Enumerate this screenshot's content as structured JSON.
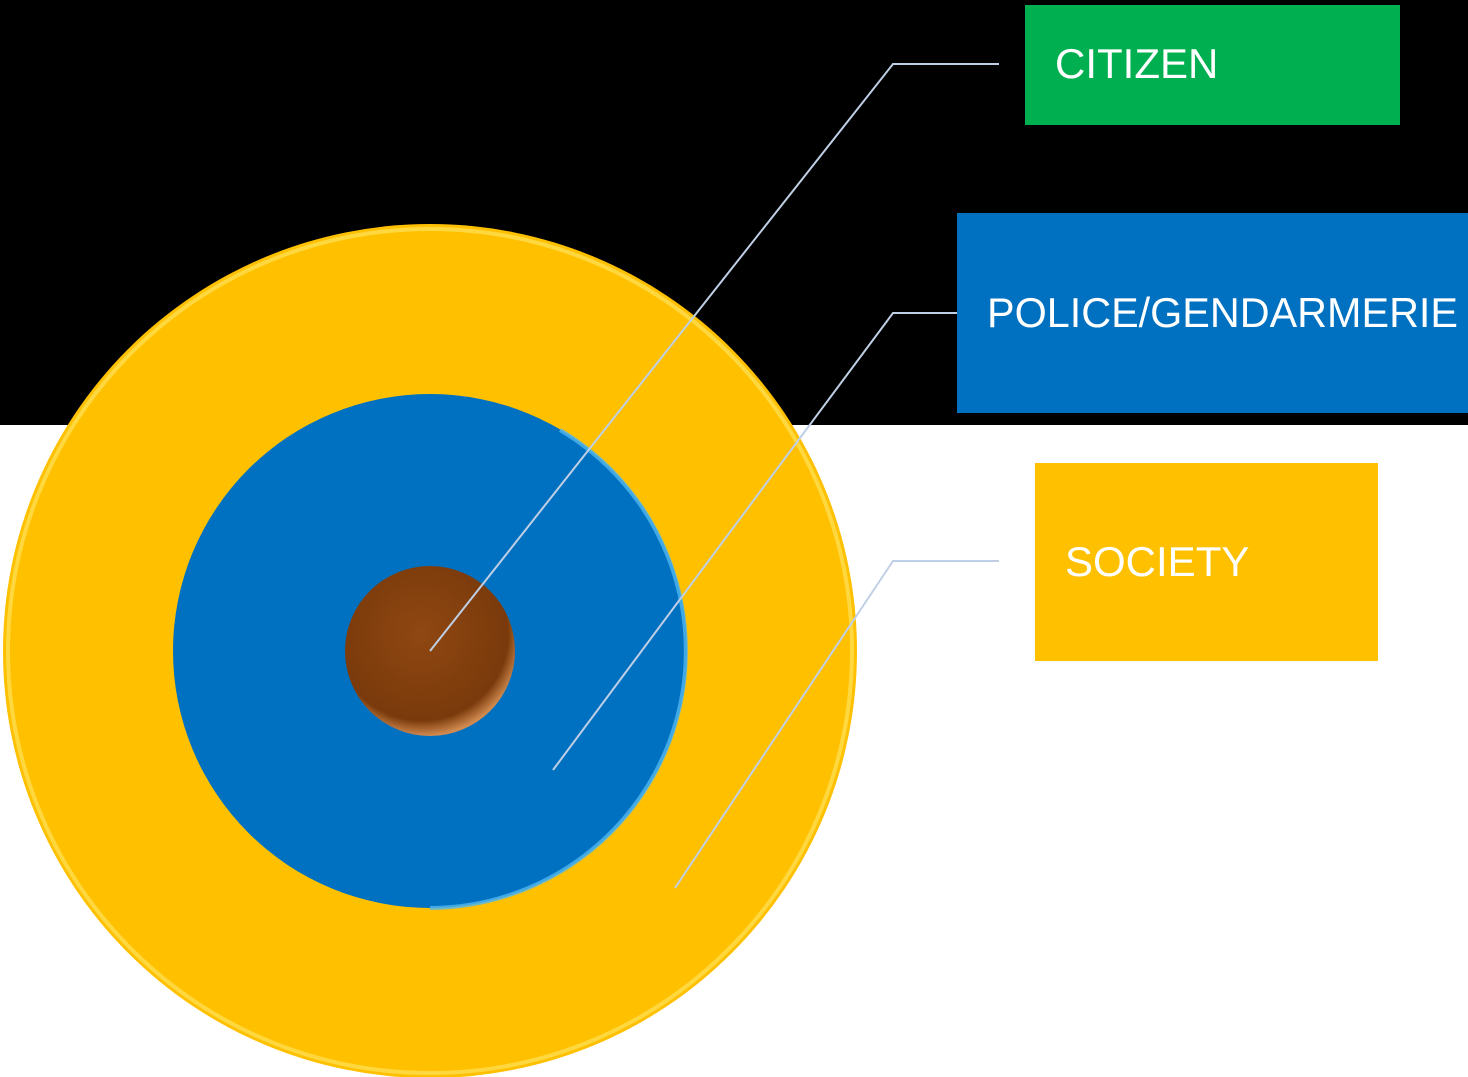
{
  "colors": {
    "top_band": "#000000",
    "background": "#ffffff",
    "society": "#FFC000",
    "police": "#0070C0",
    "citizen_core": "#8B4513",
    "citizen_box": "#00B050",
    "leader_line": "#BFCFE5"
  },
  "labels": {
    "citizen": "CITIZEN",
    "police": "POLICE/GENDARMERIE",
    "society": "SOCIETY"
  }
}
